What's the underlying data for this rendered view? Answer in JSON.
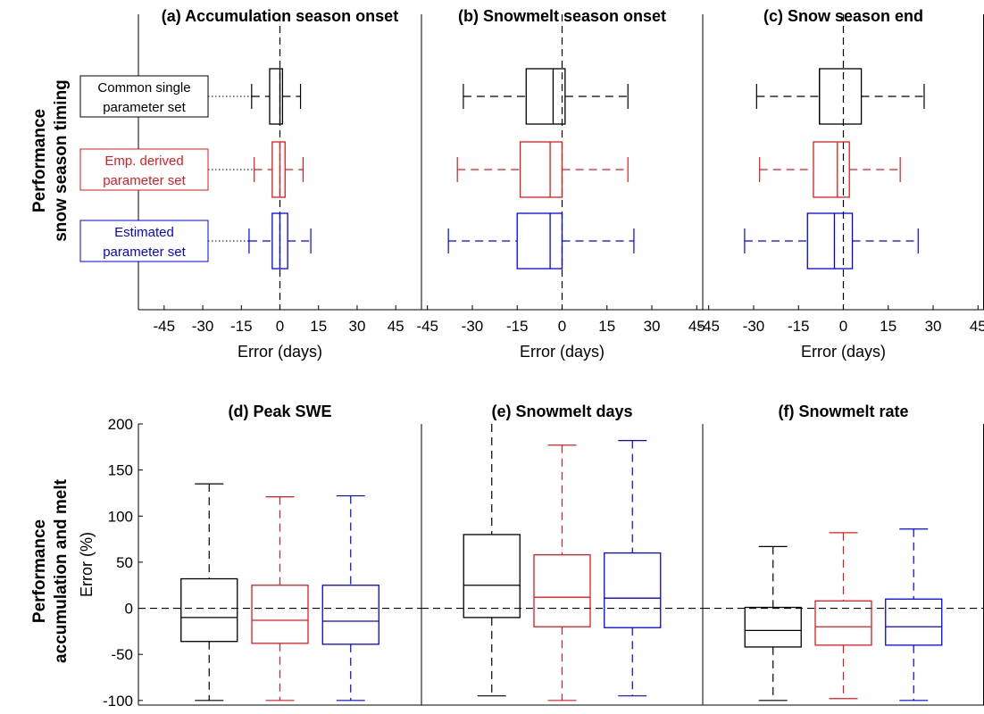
{
  "figure": {
    "top_ylabel_line1": "Performance",
    "top_ylabel_line2": "snow season timing",
    "bottom_ylabel_line1": "Performance",
    "bottom_ylabel_line2": "accumulation and melt",
    "colors": {
      "common": "#000000",
      "empirical": "#e31a1c",
      "estimated": "#0000ff",
      "axis": "#000000"
    }
  },
  "chart_data": [
    {
      "type": "box",
      "orientation": "horizontal",
      "title": "(a) Accumulation season onset",
      "xlabel": "Error (days)",
      "xlim": [
        -55,
        55
      ],
      "xticks": [
        -45,
        -30,
        -15,
        0,
        15,
        30,
        45
      ],
      "series": [
        {
          "name": "Common single parameter set",
          "label_lines": [
            "Common single",
            "parameter set"
          ],
          "color": "#000000",
          "whisker_low": -11,
          "q1": -4,
          "median": 0,
          "q3": 1,
          "whisker_high": 8
        },
        {
          "name": "Emp. derived parameter set",
          "label_lines": [
            "Emp. derived",
            "parameter set"
          ],
          "color": "#e31a1c",
          "whisker_low": -10,
          "q1": -3,
          "median": 0,
          "q3": 2,
          "whisker_high": 9
        },
        {
          "name": "Estimated parameter set",
          "label_lines": [
            "Estimated",
            "parameter set"
          ],
          "color": "#0000ff",
          "whisker_low": -12,
          "q1": -3,
          "median": 0,
          "q3": 3,
          "whisker_high": 12
        }
      ]
    },
    {
      "type": "box",
      "orientation": "horizontal",
      "title": "(b) Snowmelt season onset",
      "xlabel": "Error (days)",
      "xlim": [
        -47,
        47
      ],
      "xticks": [
        -45,
        -30,
        -15,
        0,
        15,
        30,
        45
      ],
      "series": [
        {
          "name": "Common single",
          "color": "#000000",
          "whisker_low": -33,
          "q1": -12,
          "median": -3,
          "q3": 1,
          "whisker_high": 22
        },
        {
          "name": "Emp. derived",
          "color": "#e31a1c",
          "whisker_low": -35,
          "q1": -14,
          "median": -4,
          "q3": 0,
          "whisker_high": 22
        },
        {
          "name": "Estimated",
          "color": "#0000ff",
          "whisker_low": -38,
          "q1": -15,
          "median": -4,
          "q3": 0,
          "whisker_high": 24
        }
      ]
    },
    {
      "type": "box",
      "orientation": "horizontal",
      "title": "(c) Snow season end",
      "xlabel": "Error (days)",
      "xlim": [
        -47,
        47
      ],
      "xticks": [
        -45,
        -30,
        -15,
        0,
        15,
        30,
        45
      ],
      "series": [
        {
          "name": "Common single",
          "color": "#000000",
          "whisker_low": -29,
          "q1": -8,
          "median": -8,
          "q3": 6,
          "whisker_high": 27
        },
        {
          "name": "Emp. derived",
          "color": "#e31a1c",
          "whisker_low": -28,
          "q1": -10,
          "median": -2,
          "q3": 2,
          "whisker_high": 19
        },
        {
          "name": "Estimated",
          "color": "#0000ff",
          "whisker_low": -33,
          "q1": -12,
          "median": -3,
          "q3": 3,
          "whisker_high": 25
        }
      ]
    },
    {
      "type": "box",
      "orientation": "vertical",
      "title": "(d) Peak SWE",
      "ylabel": "Error (%)",
      "ylim": [
        -105,
        200
      ],
      "yticks": [
        -100,
        -50,
        0,
        50,
        100,
        150,
        200
      ],
      "series": [
        {
          "name": "Common single",
          "color": "#000000",
          "whisker_low": -100,
          "q1": -36,
          "median": -10,
          "q3": 32,
          "whisker_high": 135
        },
        {
          "name": "Emp. derived",
          "color": "#e31a1c",
          "whisker_low": -100,
          "q1": -38,
          "median": -13,
          "q3": 25,
          "whisker_high": 121
        },
        {
          "name": "Estimated",
          "color": "#0000ff",
          "whisker_low": -100,
          "q1": -39,
          "median": -14,
          "q3": 25,
          "whisker_high": 122
        }
      ]
    },
    {
      "type": "box",
      "orientation": "vertical",
      "title": "(e) Snowmelt days",
      "ylim": [
        -105,
        200
      ],
      "yticks": [
        -100,
        -50,
        0,
        50,
        100,
        150,
        200
      ],
      "series": [
        {
          "name": "Common single",
          "color": "#000000",
          "whisker_low": -95,
          "q1": -10,
          "median": 25,
          "q3": 80,
          "whisker_high": 200
        },
        {
          "name": "Emp. derived",
          "color": "#e31a1c",
          "whisker_low": -100,
          "q1": -20,
          "median": 12,
          "q3": 58,
          "whisker_high": 177
        },
        {
          "name": "Estimated",
          "color": "#0000ff",
          "whisker_low": -95,
          "q1": -21,
          "median": 11,
          "q3": 60,
          "whisker_high": 182
        }
      ]
    },
    {
      "type": "box",
      "orientation": "vertical",
      "title": "(f) Snowmelt rate",
      "ylim": [
        -105,
        200
      ],
      "yticks": [
        -100,
        -50,
        0,
        50,
        100,
        150,
        200
      ],
      "series": [
        {
          "name": "Common single",
          "color": "#000000",
          "whisker_low": -100,
          "q1": -42,
          "median": -24,
          "q3": 1,
          "whisker_high": 67
        },
        {
          "name": "Emp. derived",
          "color": "#e31a1c",
          "whisker_low": -98,
          "q1": -40,
          "median": -20,
          "q3": 8,
          "whisker_high": 82
        },
        {
          "name": "Estimated",
          "color": "#0000ff",
          "whisker_low": -100,
          "q1": -40,
          "median": -20,
          "q3": 10,
          "whisker_high": 86
        }
      ]
    }
  ]
}
